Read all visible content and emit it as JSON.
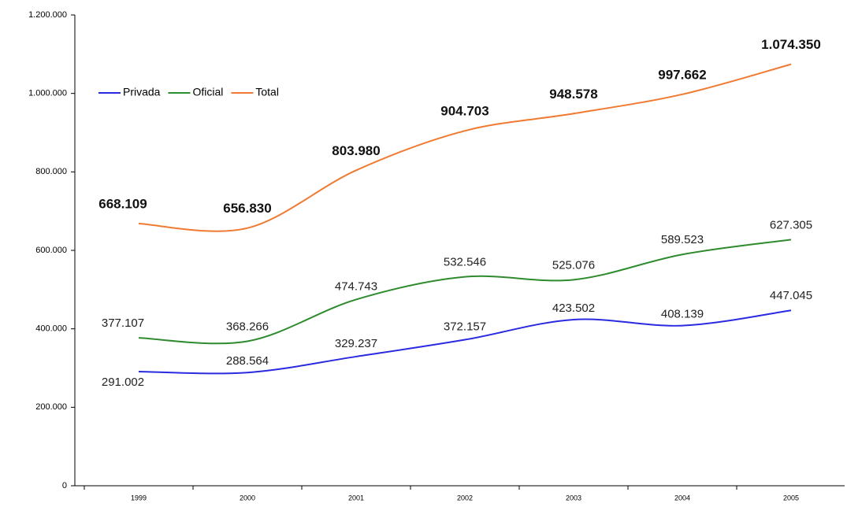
{
  "chart_data": {
    "type": "line",
    "categories": [
      "1999",
      "2000",
      "2001",
      "2002",
      "2003",
      "2004",
      "2005"
    ],
    "series": [
      {
        "name": "Privada",
        "color": "#2a2ae0",
        "values": [
          291002,
          288564,
          329237,
          372157,
          423502,
          408139,
          447045
        ],
        "value_labels": [
          "291.002",
          "288.564",
          "329.237",
          "372.157",
          "423.502",
          "408.139",
          "447.045"
        ]
      },
      {
        "name": "Oficial",
        "color": "#2e8b2e",
        "values": [
          377107,
          368266,
          474743,
          532546,
          525076,
          589523,
          627305
        ],
        "value_labels": [
          "377.107",
          "368.266",
          "474.743",
          "532.546",
          "525.076",
          "589.523",
          "627.305"
        ]
      },
      {
        "name": "Total",
        "color": "#f07a32",
        "values": [
          668109,
          656830,
          803980,
          904703,
          948578,
          997662,
          1074350
        ],
        "value_labels": [
          "668.109",
          "656.830",
          "803.980",
          "904.703",
          "948.578",
          "997.662",
          "1.074.350"
        ]
      }
    ],
    "ylim": [
      0,
      1200000
    ],
    "yticks": [
      0,
      {
        "value": 200000,
        "label": "200.000"
      },
      {
        "value": 400000,
        "label": "400.000"
      },
      {
        "value": 600000,
        "label": "600.000"
      },
      {
        "value": 800000,
        "label": "800.000"
      },
      {
        "value": 1000000,
        "label": "1.000.000"
      },
      {
        "value": 1200000,
        "label": "1.200.000"
      }
    ],
    "legend": "upper left"
  }
}
